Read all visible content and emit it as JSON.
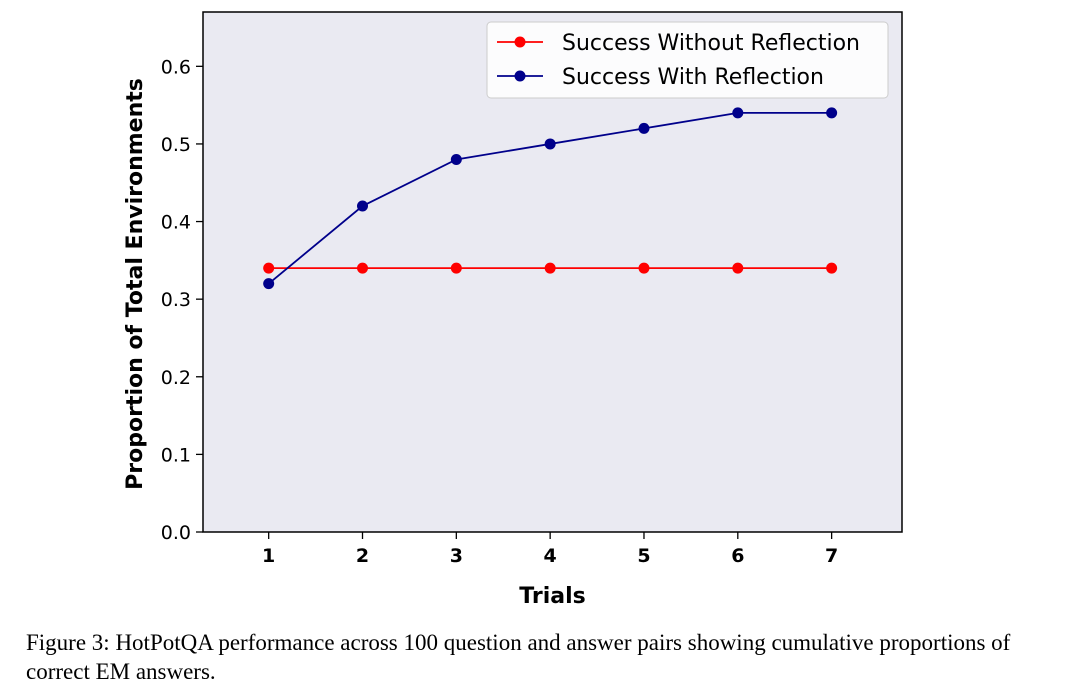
{
  "chart_data": {
    "type": "line",
    "xlabel": "Trials",
    "ylabel": "Proportion of Total Environments",
    "x": [
      1,
      2,
      3,
      4,
      5,
      6,
      7
    ],
    "xlim": [
      0.3,
      7.75
    ],
    "ylim": [
      0.0,
      0.67
    ],
    "yticks": [
      0.0,
      0.1,
      0.2,
      0.3,
      0.4,
      0.5,
      0.6
    ],
    "ytick_labels": [
      "0.0",
      "0.1",
      "0.2",
      "0.3",
      "0.4",
      "0.5",
      "0.6"
    ],
    "xtick_labels": [
      "1",
      "2",
      "3",
      "4",
      "5",
      "6",
      "7"
    ],
    "grid": false,
    "legend_position": "top-right",
    "background_color": "#eaeaf2",
    "series": [
      {
        "name": "Success Without Reflection",
        "color": "#ff0000",
        "values": [
          0.34,
          0.34,
          0.34,
          0.34,
          0.34,
          0.34,
          0.34
        ]
      },
      {
        "name": "Success With Reflection",
        "color": "#00008b",
        "values": [
          0.32,
          0.42,
          0.48,
          0.5,
          0.52,
          0.54,
          0.54
        ]
      }
    ]
  },
  "caption": "Figure 3: HotPotQA performance across 100 question and answer pairs showing cumulative proportions of correct EM answers."
}
